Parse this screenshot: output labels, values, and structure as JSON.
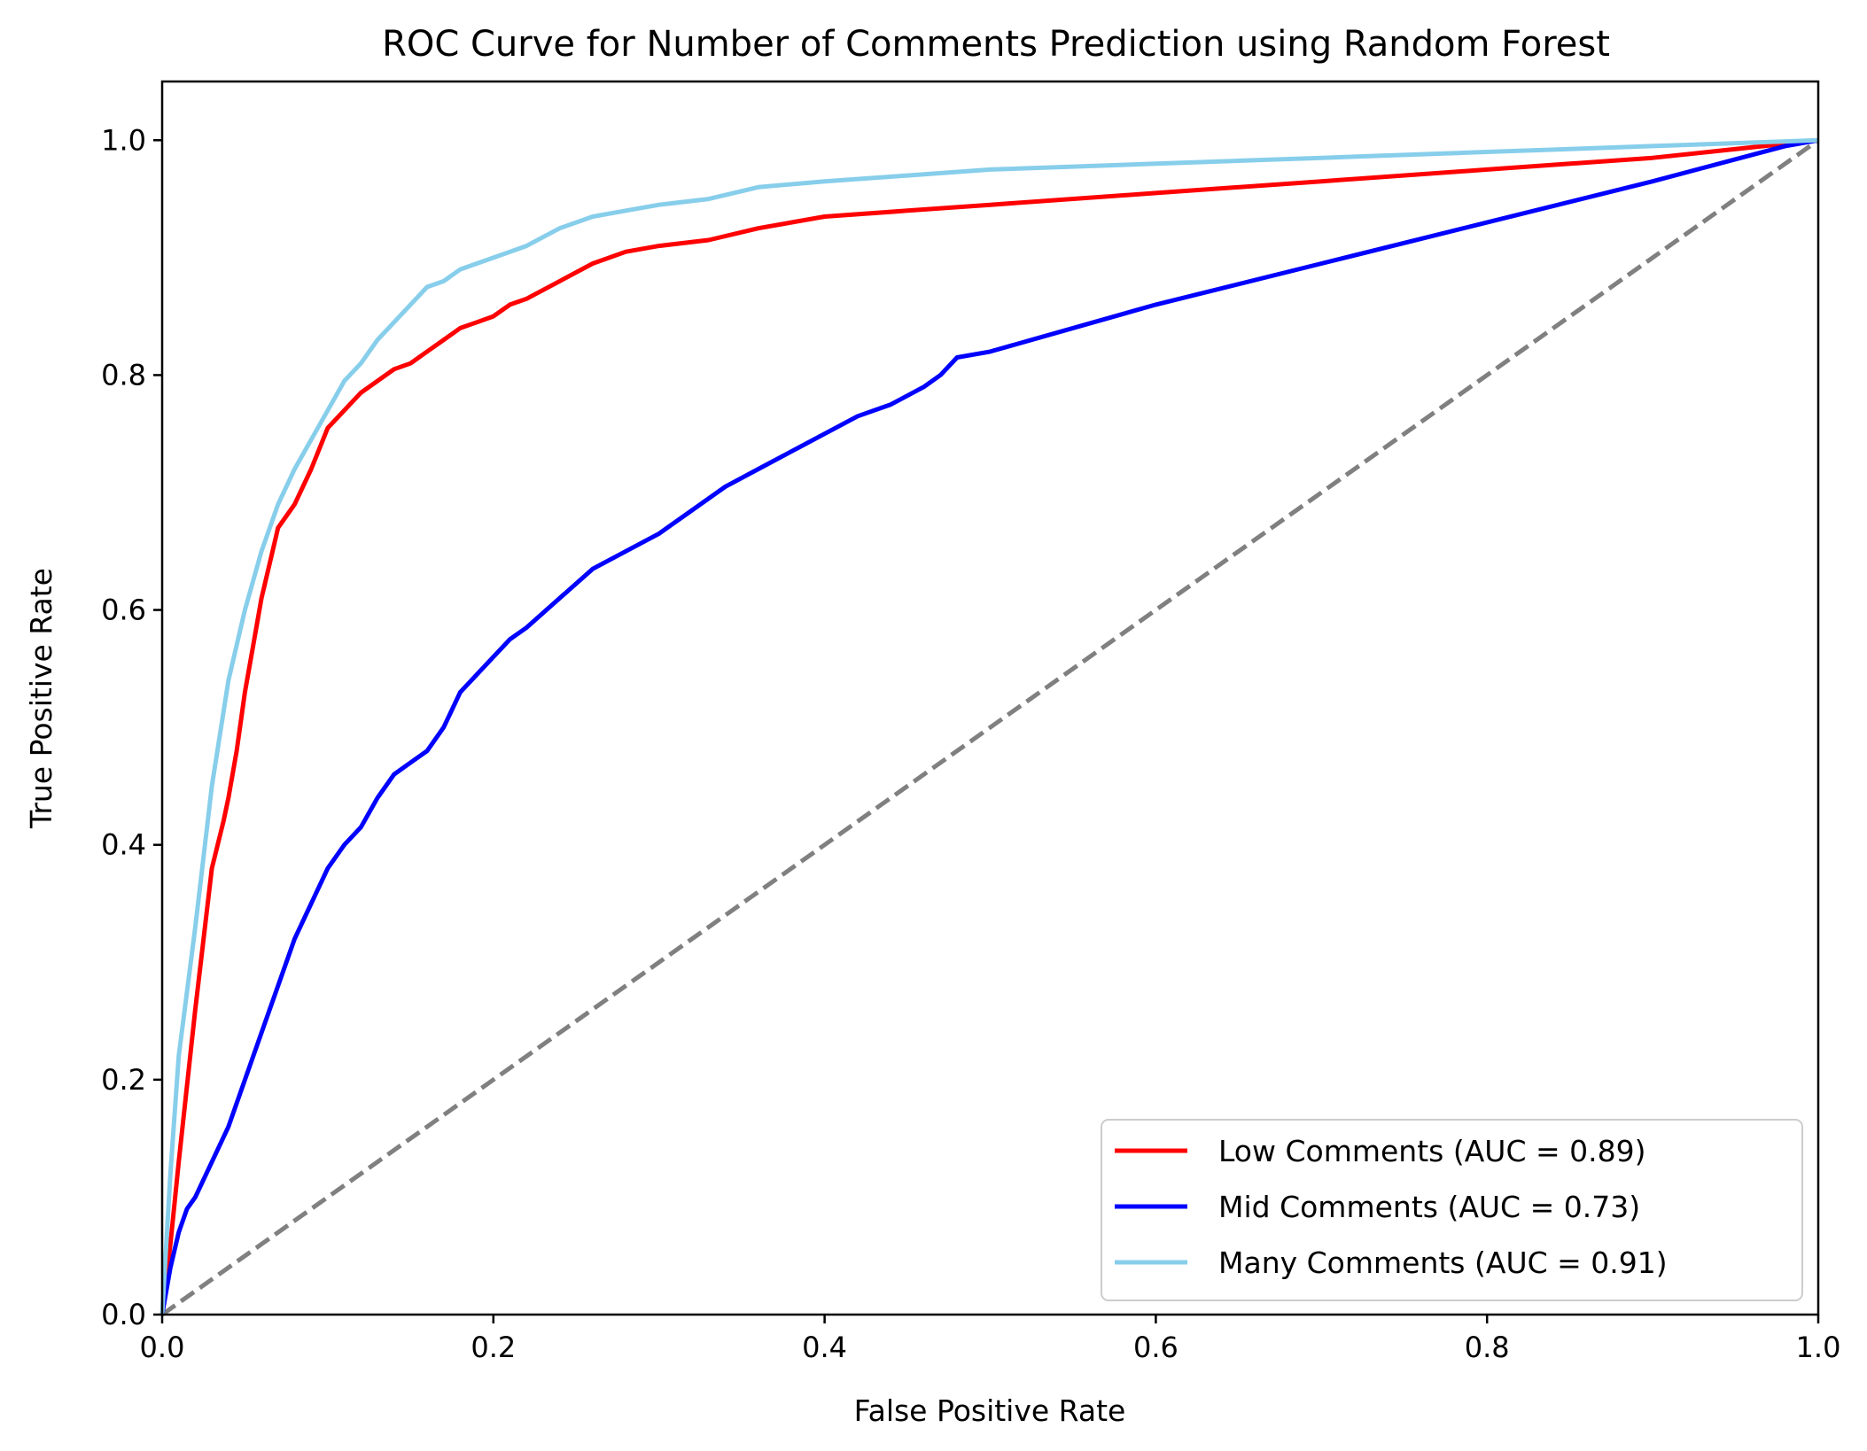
{
  "chart_data": {
    "type": "line",
    "title": "ROC Curve for Number of Comments Prediction using Random Forest",
    "xlabel": "False Positive Rate",
    "ylabel": "True Positive Rate",
    "xlim": [
      0.0,
      1.0
    ],
    "ylim": [
      0.0,
      1.05
    ],
    "x_ticks": [
      "0.0",
      "0.2",
      "0.4",
      "0.6",
      "0.8",
      "1.0"
    ],
    "y_ticks": [
      "0.0",
      "0.2",
      "0.4",
      "0.6",
      "0.8",
      "1.0"
    ],
    "grid": false,
    "legend_position": "lower-right",
    "series": [
      {
        "name": "Low Comments (AUC = 0.89)",
        "color": "#ff0000",
        "x": [
          0.0,
          0.005,
          0.01,
          0.02,
          0.03,
          0.037,
          0.04,
          0.045,
          0.05,
          0.055,
          0.06,
          0.065,
          0.07,
          0.075,
          0.08,
          0.09,
          0.1,
          0.11,
          0.12,
          0.13,
          0.14,
          0.15,
          0.16,
          0.17,
          0.18,
          0.19,
          0.2,
          0.21,
          0.22,
          0.24,
          0.26,
          0.28,
          0.3,
          0.33,
          0.36,
          0.4,
          0.45,
          0.5,
          0.6,
          0.7,
          0.8,
          0.9,
          1.0
        ],
        "y": [
          0.0,
          0.06,
          0.13,
          0.26,
          0.38,
          0.42,
          0.44,
          0.48,
          0.53,
          0.57,
          0.61,
          0.64,
          0.67,
          0.68,
          0.69,
          0.72,
          0.755,
          0.77,
          0.785,
          0.795,
          0.805,
          0.81,
          0.82,
          0.83,
          0.84,
          0.845,
          0.85,
          0.86,
          0.865,
          0.88,
          0.895,
          0.905,
          0.91,
          0.915,
          0.925,
          0.935,
          0.94,
          0.945,
          0.955,
          0.965,
          0.975,
          0.985,
          1.0
        ]
      },
      {
        "name": "Mid Comments (AUC = 0.73)",
        "color": "#0000ff",
        "x": [
          0.0,
          0.005,
          0.01,
          0.015,
          0.02,
          0.03,
          0.04,
          0.05,
          0.06,
          0.07,
          0.08,
          0.09,
          0.1,
          0.11,
          0.12,
          0.13,
          0.14,
          0.15,
          0.16,
          0.17,
          0.18,
          0.19,
          0.2,
          0.21,
          0.22,
          0.24,
          0.26,
          0.28,
          0.3,
          0.32,
          0.34,
          0.36,
          0.38,
          0.4,
          0.42,
          0.44,
          0.46,
          0.47,
          0.48,
          0.5,
          0.6,
          0.7,
          0.8,
          0.9,
          0.98,
          1.0
        ],
        "y": [
          0.0,
          0.04,
          0.07,
          0.09,
          0.1,
          0.13,
          0.16,
          0.2,
          0.24,
          0.28,
          0.32,
          0.35,
          0.38,
          0.4,
          0.415,
          0.44,
          0.46,
          0.47,
          0.48,
          0.5,
          0.53,
          0.545,
          0.56,
          0.575,
          0.585,
          0.61,
          0.635,
          0.65,
          0.665,
          0.685,
          0.705,
          0.72,
          0.735,
          0.75,
          0.765,
          0.775,
          0.79,
          0.8,
          0.815,
          0.82,
          0.86,
          0.895,
          0.93,
          0.965,
          0.995,
          1.0
        ]
      },
      {
        "name": "Many Comments (AUC = 0.91)",
        "color": "#87ceeb",
        "x": [
          0.0,
          0.005,
          0.01,
          0.02,
          0.03,
          0.04,
          0.05,
          0.06,
          0.07,
          0.08,
          0.09,
          0.1,
          0.11,
          0.12,
          0.13,
          0.14,
          0.15,
          0.16,
          0.17,
          0.18,
          0.19,
          0.2,
          0.22,
          0.24,
          0.26,
          0.28,
          0.3,
          0.33,
          0.36,
          0.4,
          0.45,
          0.5,
          0.6,
          0.7,
          0.8,
          0.9,
          1.0
        ],
        "y": [
          0.0,
          0.12,
          0.22,
          0.33,
          0.45,
          0.54,
          0.6,
          0.65,
          0.69,
          0.72,
          0.745,
          0.77,
          0.795,
          0.81,
          0.83,
          0.845,
          0.86,
          0.875,
          0.88,
          0.89,
          0.895,
          0.9,
          0.91,
          0.925,
          0.935,
          0.94,
          0.945,
          0.95,
          0.96,
          0.965,
          0.97,
          0.975,
          0.98,
          0.985,
          0.99,
          0.995,
          1.0
        ]
      },
      {
        "name": "",
        "color": "#808080",
        "dashed": true,
        "x": [
          0.0,
          1.0
        ],
        "y": [
          0.0,
          1.0
        ]
      }
    ]
  }
}
